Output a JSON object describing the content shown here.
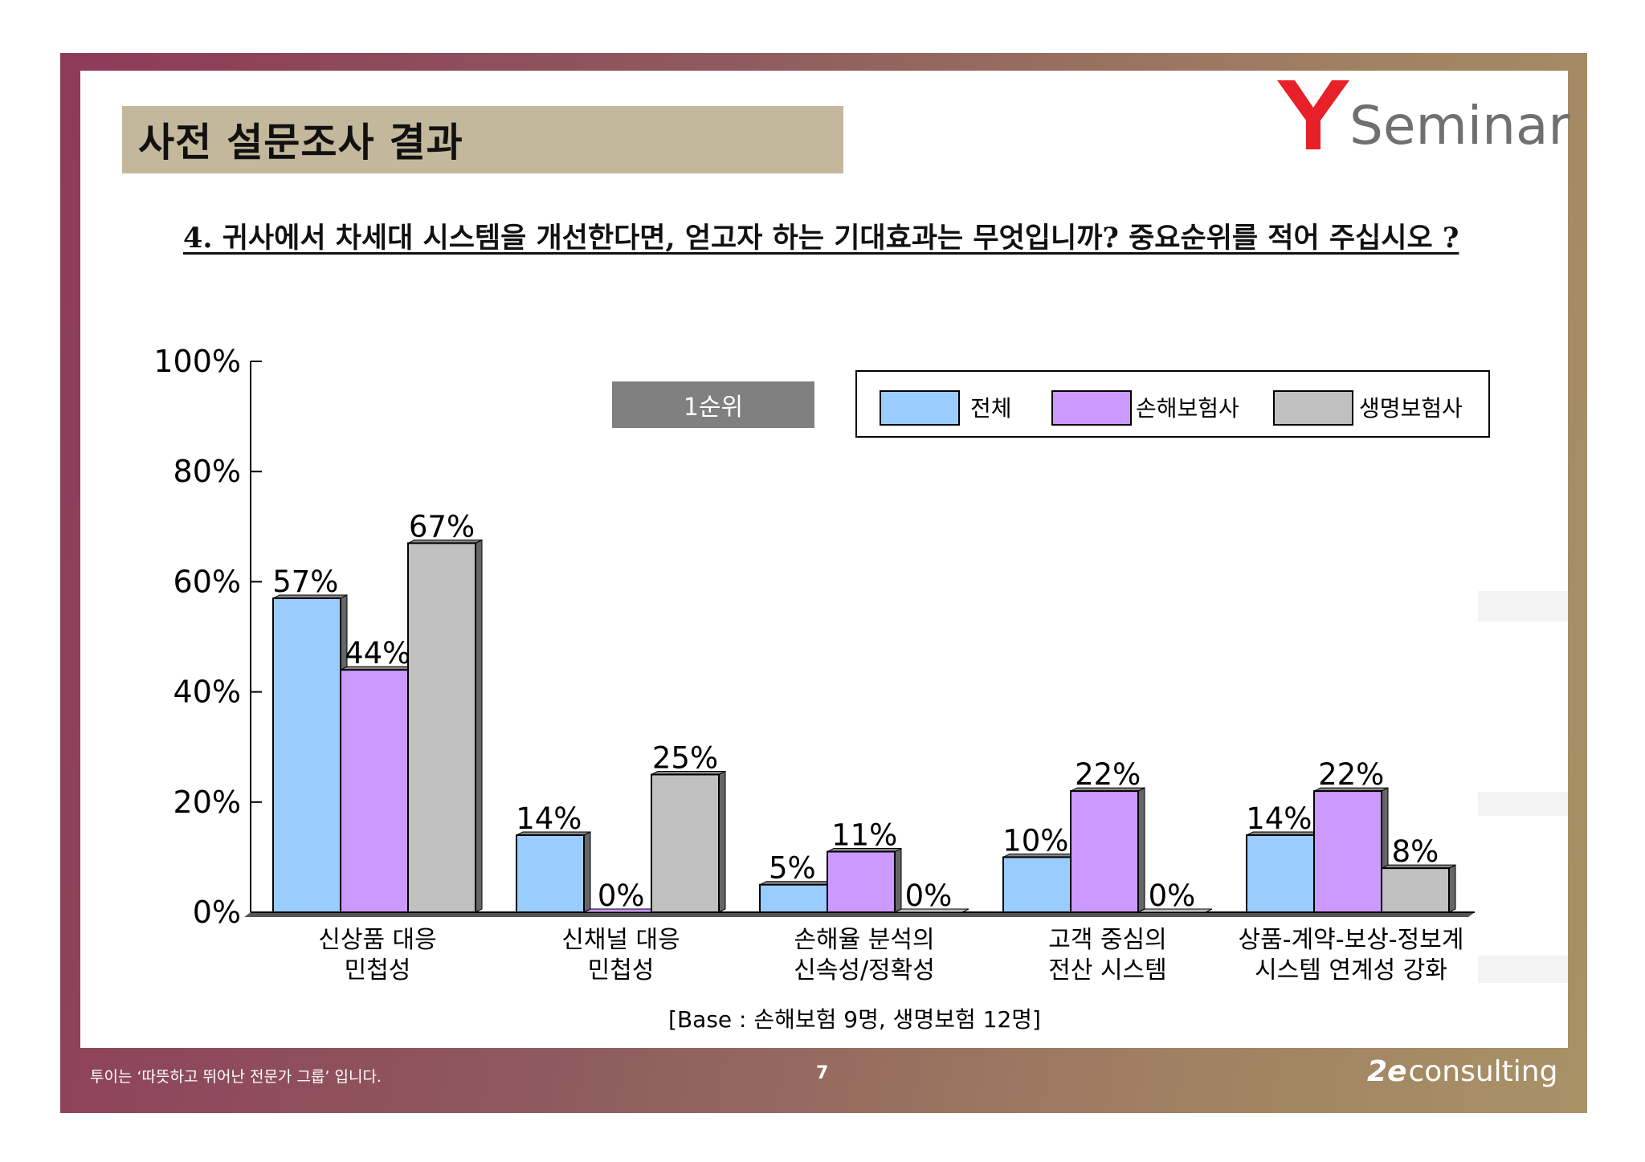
{
  "header": {
    "page_title": "사전 설문조사 결과",
    "logo_brand": "Seminar",
    "logo_color": "#e8202a"
  },
  "question": "4. 귀사에서 차세대 시스템을 개선한다면, 얻고자 하는 기대효과는 무엇입니까? 중요순위를 적어 주십시오 ?",
  "chart_data": {
    "type": "bar",
    "title": "1순위",
    "categories": [
      "신상품 대응\n민첩성",
      "신채널 대응\n민첩성",
      "손해율 분석의\n신속성/정확성",
      "고객 중심의\n전산 시스템",
      "상품-계약-보상-정보계\n시스템 연계성 강화"
    ],
    "series": [
      {
        "name": "전체",
        "values": [
          57,
          14,
          5,
          10,
          14
        ],
        "labels": [
          "57%",
          "14%",
          "5%",
          "10%",
          "14%"
        ],
        "color": "#99ccff"
      },
      {
        "name": "손해보험사",
        "values": [
          44,
          0,
          11,
          22,
          22
        ],
        "labels": [
          "44%",
          "0%",
          "11%",
          "22%",
          "22%"
        ],
        "color": "#cc99ff"
      },
      {
        "name": "생명보험사",
        "values": [
          67,
          25,
          0,
          0,
          8
        ],
        "labels": [
          "67%",
          "25%",
          "0%",
          "0%",
          "8%"
        ],
        "color": "#c0c0c0"
      }
    ],
    "yticks": [
      "0%",
      "20%",
      "40%",
      "60%",
      "80%",
      "100%"
    ],
    "ylim": [
      0,
      100
    ],
    "legend_position": "top-right",
    "note": "[Base :  손해보험 9명, 생명보험  12명]"
  },
  "footer": {
    "slogan": "투이는 ‘따뜻하고 뛰어난 전문가 그룹’ 입니다.",
    "page_number": "7",
    "logo_mark": "2e",
    "logo_text": "consulting"
  }
}
